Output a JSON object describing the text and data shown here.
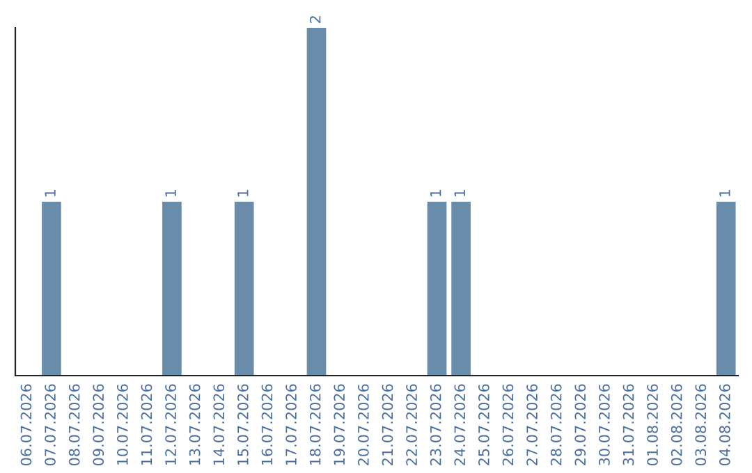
{
  "chart_data": {
    "type": "bar",
    "categories": [
      "06.07.2026",
      "07.07.2026",
      "08.07.2026",
      "09.07.2026",
      "10.07.2026",
      "11.07.2026",
      "12.07.2026",
      "13.07.2026",
      "14.07.2026",
      "15.07.2026",
      "16.07.2026",
      "17.07.2026",
      "18.07.2026",
      "19.07.2026",
      "20.07.2026",
      "21.07.2026",
      "22.07.2026",
      "23.07.2026",
      "24.07.2026",
      "25.07.2026",
      "26.07.2026",
      "27.07.2026",
      "28.07.2026",
      "29.07.2026",
      "30.07.2026",
      "31.07.2026",
      "01.08.2026",
      "02.08.2026",
      "03.08.2026",
      "04.08.2026"
    ],
    "values": [
      0,
      1,
      0,
      0,
      0,
      0,
      1,
      0,
      0,
      1,
      0,
      0,
      2,
      0,
      0,
      0,
      0,
      1,
      1,
      0,
      0,
      0,
      0,
      0,
      0,
      0,
      0,
      0,
      0,
      1
    ],
    "value_labels": [
      null,
      "1",
      null,
      null,
      null,
      null,
      "1",
      null,
      null,
      "1",
      null,
      null,
      "2",
      null,
      null,
      null,
      null,
      "1",
      "1",
      null,
      null,
      null,
      null,
      null,
      null,
      null,
      null,
      null,
      null,
      "1"
    ],
    "color": "#6a8cab",
    "tick_labels": "x",
    "grid": false,
    "legend": false
  }
}
